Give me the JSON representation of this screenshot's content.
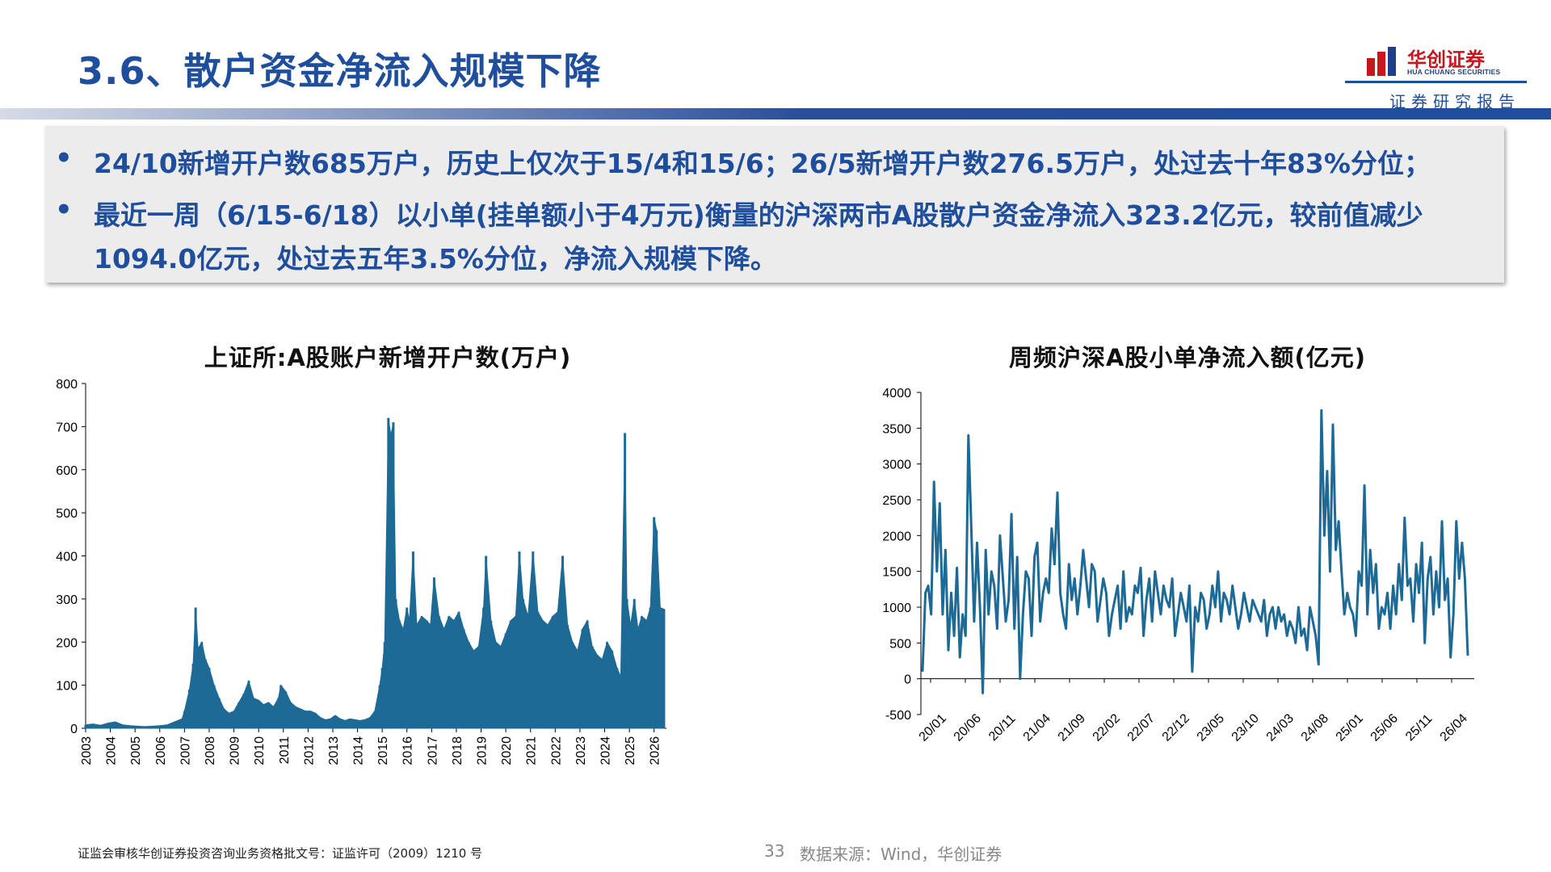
{
  "slide": {
    "title": "3.6、散户资金净流入规模下降",
    "logo_cn": "华创证券",
    "logo_en": "HUA CHUANG SECURITIES",
    "report_tag": "证券研究报告",
    "bullets": [
      "24/10新增开户数685万户，历史上仅次于15/4和15/6；26/5新增开户数276.5万户，处过去十年83%分位；",
      "最近一周（6/15-6/18）以小单(挂单额小于4万元)衡量的沪深两市A股散户资金净流入323.2亿元，较前值减少1094.0亿元，处过去五年3.5%分位，净流入规模下降。"
    ],
    "footer_license": "证监会审核华创证券投资咨询业务资格批文号：证监许可（2009）1210 号",
    "page_number": "33",
    "source": "数据来源：Wind，华创证券",
    "colors": {
      "accent": "#1f4e9c",
      "series": "#1c6a95",
      "brand_red": "#c8161d"
    }
  },
  "chart_data": [
    {
      "type": "bar",
      "title": "上证所:A股账户新增开户数(万户)",
      "ylim": [
        0,
        800
      ],
      "yticks": [
        "0",
        "100",
        "200",
        "300",
        "400",
        "500",
        "600",
        "700",
        "800"
      ],
      "xticks": [
        "2003",
        "2004",
        "2005",
        "2006",
        "2007",
        "2008",
        "2009",
        "2010",
        "2011",
        "2012",
        "2013",
        "2014",
        "2015",
        "2016",
        "2017",
        "2018",
        "2019",
        "2020",
        "2021",
        "2022",
        "2023",
        "2024",
        "2025",
        "2026"
      ],
      "xlim": [
        2003.0,
        2026.5
      ],
      "points": [
        [
          2003.0,
          8
        ],
        [
          2003.3,
          10
        ],
        [
          2003.6,
          7
        ],
        [
          2003.9,
          12
        ],
        [
          2004.2,
          15
        ],
        [
          2004.5,
          8
        ],
        [
          2004.8,
          6
        ],
        [
          2005.1,
          5
        ],
        [
          2005.4,
          4
        ],
        [
          2005.7,
          5
        ],
        [
          2006.0,
          6
        ],
        [
          2006.3,
          8
        ],
        [
          2006.6,
          15
        ],
        [
          2006.9,
          22
        ],
        [
          2007.0,
          40
        ],
        [
          2007.2,
          90
        ],
        [
          2007.35,
          150
        ],
        [
          2007.45,
          280
        ],
        [
          2007.55,
          185
        ],
        [
          2007.7,
          200
        ],
        [
          2007.85,
          160
        ],
        [
          2008.0,
          140
        ],
        [
          2008.2,
          100
        ],
        [
          2008.4,
          70
        ],
        [
          2008.6,
          45
        ],
        [
          2008.8,
          35
        ],
        [
          2009.0,
          40
        ],
        [
          2009.2,
          60
        ],
        [
          2009.4,
          80
        ],
        [
          2009.6,
          110
        ],
        [
          2009.8,
          70
        ],
        [
          2010.0,
          65
        ],
        [
          2010.2,
          55
        ],
        [
          2010.4,
          60
        ],
        [
          2010.6,
          50
        ],
        [
          2010.8,
          70
        ],
        [
          2010.9,
          100
        ],
        [
          2011.1,
          85
        ],
        [
          2011.3,
          60
        ],
        [
          2011.5,
          50
        ],
        [
          2011.7,
          45
        ],
        [
          2011.9,
          40
        ],
        [
          2012.1,
          40
        ],
        [
          2012.3,
          35
        ],
        [
          2012.5,
          25
        ],
        [
          2012.7,
          20
        ],
        [
          2012.9,
          22
        ],
        [
          2013.1,
          30
        ],
        [
          2013.3,
          22
        ],
        [
          2013.5,
          18
        ],
        [
          2013.7,
          22
        ],
        [
          2013.9,
          20
        ],
        [
          2014.1,
          18
        ],
        [
          2014.3,
          20
        ],
        [
          2014.5,
          25
        ],
        [
          2014.7,
          40
        ],
        [
          2014.9,
          100
        ],
        [
          2015.0,
          140
        ],
        [
          2015.1,
          200
        ],
        [
          2015.25,
          720
        ],
        [
          2015.35,
          680
        ],
        [
          2015.45,
          710
        ],
        [
          2015.55,
          300
        ],
        [
          2015.7,
          250
        ],
        [
          2015.85,
          230
        ],
        [
          2016.0,
          280
        ],
        [
          2016.1,
          250
        ],
        [
          2016.25,
          410
        ],
        [
          2016.4,
          240
        ],
        [
          2016.6,
          260
        ],
        [
          2016.8,
          250
        ],
        [
          2016.95,
          240
        ],
        [
          2017.1,
          350
        ],
        [
          2017.3,
          260
        ],
        [
          2017.5,
          230
        ],
        [
          2017.7,
          260
        ],
        [
          2017.9,
          250
        ],
        [
          2018.1,
          270
        ],
        [
          2018.3,
          230
        ],
        [
          2018.5,
          200
        ],
        [
          2018.7,
          180
        ],
        [
          2018.9,
          190
        ],
        [
          2019.1,
          280
        ],
        [
          2019.2,
          400
        ],
        [
          2019.4,
          250
        ],
        [
          2019.6,
          200
        ],
        [
          2019.8,
          190
        ],
        [
          2020.0,
          220
        ],
        [
          2020.2,
          250
        ],
        [
          2020.4,
          260
        ],
        [
          2020.55,
          410
        ],
        [
          2020.7,
          300
        ],
        [
          2020.9,
          260
        ],
        [
          2021.1,
          410
        ],
        [
          2021.3,
          270
        ],
        [
          2021.5,
          250
        ],
        [
          2021.7,
          240
        ],
        [
          2021.9,
          260
        ],
        [
          2022.1,
          270
        ],
        [
          2022.3,
          400
        ],
        [
          2022.5,
          240
        ],
        [
          2022.7,
          200
        ],
        [
          2022.9,
          180
        ],
        [
          2023.1,
          230
        ],
        [
          2023.3,
          250
        ],
        [
          2023.5,
          190
        ],
        [
          2023.7,
          170
        ],
        [
          2023.9,
          160
        ],
        [
          2024.1,
          200
        ],
        [
          2024.3,
          180
        ],
        [
          2024.5,
          140
        ],
        [
          2024.65,
          120
        ],
        [
          2024.82,
          685
        ],
        [
          2024.9,
          300
        ],
        [
          2025.05,
          240
        ],
        [
          2025.2,
          300
        ],
        [
          2025.35,
          230
        ],
        [
          2025.5,
          260
        ],
        [
          2025.7,
          250
        ],
        [
          2025.85,
          280
        ],
        [
          2026.0,
          490
        ],
        [
          2026.1,
          460
        ],
        [
          2026.25,
          280
        ],
        [
          2026.4,
          276.5
        ]
      ]
    },
    {
      "type": "line",
      "title": "周频沪深A股小单净流入额(亿元)",
      "ylim": [
        -500,
        4000
      ],
      "yticks": [
        "-500",
        "0",
        "500",
        "1000",
        "1500",
        "2000",
        "2500",
        "3000",
        "3500",
        "4000"
      ],
      "xticks": [
        "20/01",
        "20/06",
        "20/11",
        "21/04",
        "21/09",
        "22/02",
        "22/07",
        "22/12",
        "23/05",
        "23/10",
        "24/03",
        "24/08",
        "25/01",
        "25/06",
        "25/11",
        "26/04"
      ],
      "values": [
        100,
        1200,
        1300,
        900,
        2750,
        1500,
        2450,
        900,
        1800,
        400,
        1200,
        600,
        1550,
        300,
        900,
        600,
        3400,
        2100,
        800,
        1900,
        1000,
        -200,
        1800,
        900,
        1500,
        1300,
        700,
        2000,
        1400,
        800,
        1100,
        2300,
        700,
        1700,
        0,
        900,
        1500,
        1400,
        600,
        1700,
        1900,
        800,
        1200,
        1400,
        1200,
        2100,
        1600,
        2600,
        1200,
        900,
        700,
        1600,
        1100,
        1400,
        900,
        1300,
        1800,
        1400,
        1000,
        1600,
        1500,
        800,
        1100,
        1400,
        1200,
        600,
        900,
        1100,
        1300,
        700,
        1500,
        800,
        1000,
        900,
        1300,
        1200,
        1550,
        600,
        1100,
        1400,
        800,
        1500,
        1200,
        900,
        1300,
        1100,
        1000,
        1400,
        600,
        900,
        1200,
        1000,
        800,
        1300,
        100,
        1000,
        800,
        1200,
        1100,
        700,
        900,
        1300,
        1000,
        1500,
        800,
        1200,
        1100,
        900,
        1300,
        1000,
        700,
        900,
        1200,
        1000,
        800,
        1100,
        1000,
        900,
        800,
        1100,
        600,
        900,
        1000,
        700,
        1000,
        800,
        900,
        600,
        800,
        700,
        500,
        1000,
        600,
        700,
        400,
        1000,
        800,
        600,
        200,
        3750,
        2000,
        2900,
        1500,
        3550,
        1800,
        2200,
        1500,
        900,
        1200,
        1000,
        900,
        600,
        1500,
        1300,
        2700,
        900,
        1800,
        1200,
        1600,
        700,
        1000,
        900,
        1200,
        700,
        1300,
        900,
        1600,
        1100,
        2250,
        1300,
        1400,
        800,
        1600,
        1200,
        1900,
        500,
        1400,
        1700,
        900,
        1500,
        1000,
        2200,
        1100,
        1400,
        300,
        900,
        2200,
        1400,
        1900,
        1400,
        323.2
      ]
    }
  ]
}
